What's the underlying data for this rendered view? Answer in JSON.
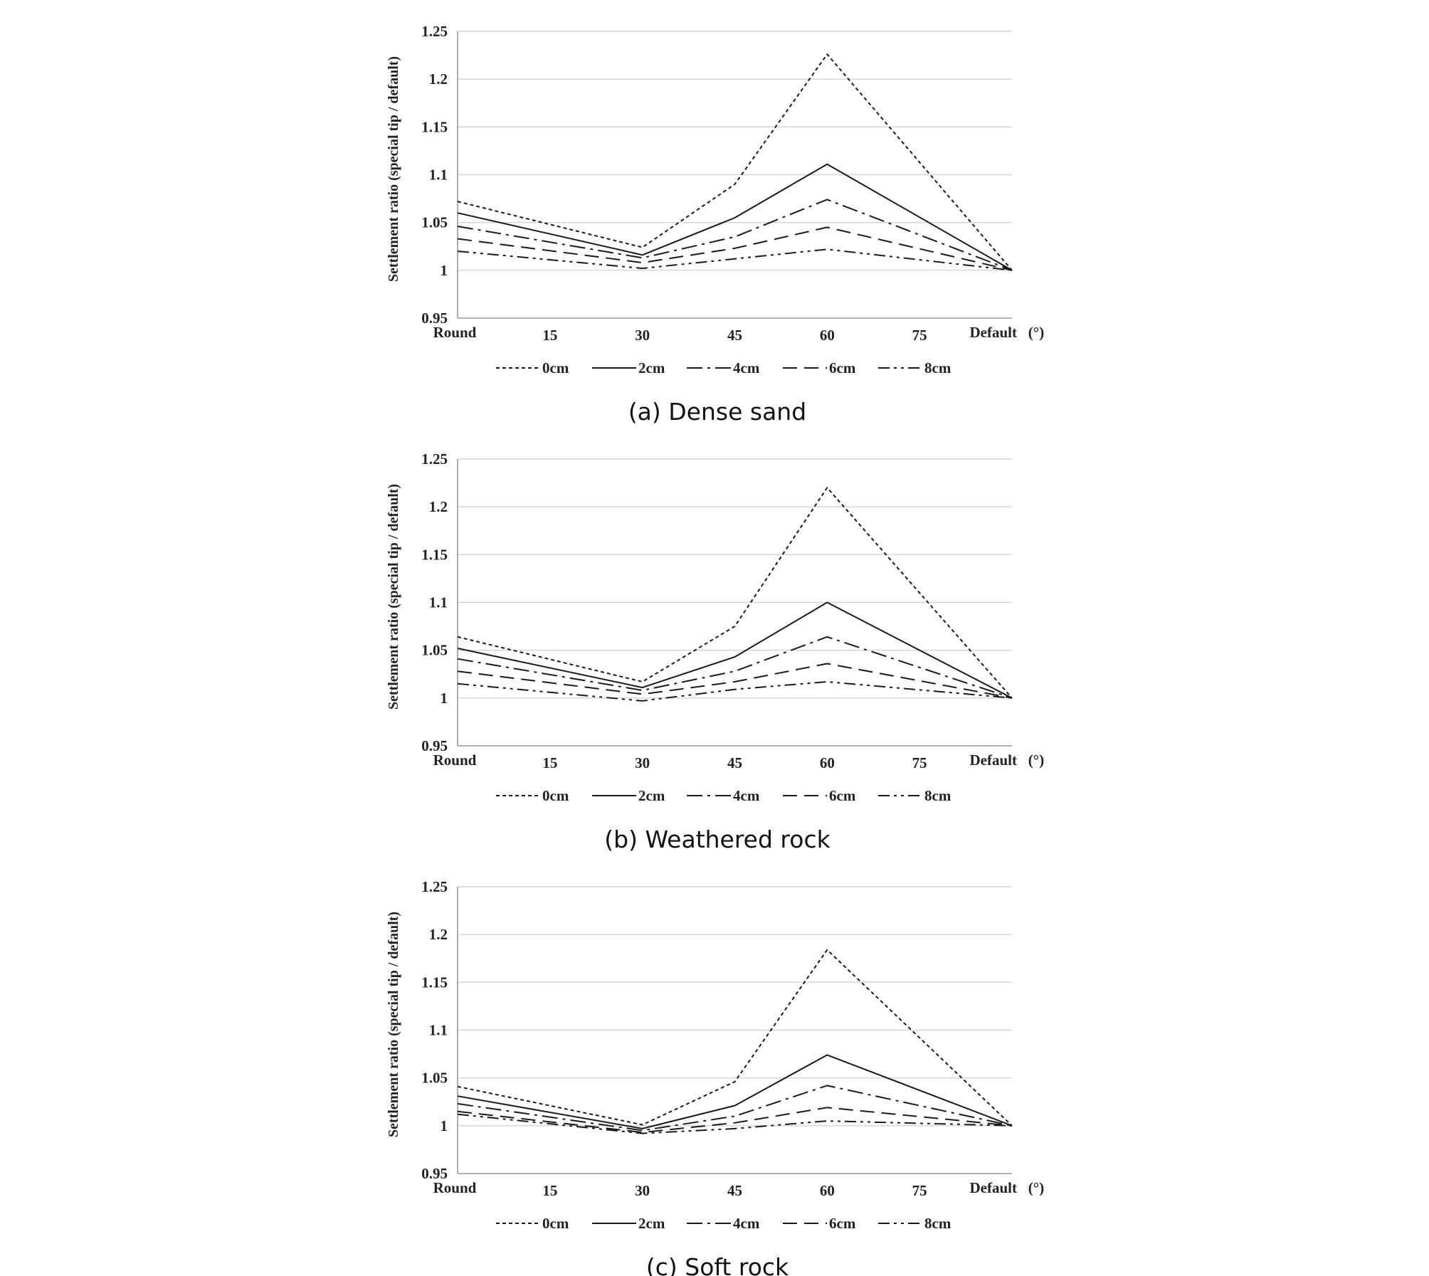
{
  "chart_data": [
    {
      "type": "line",
      "title": "(a) Dense sand",
      "xlabel": "",
      "ylabel": "Settlement ratio (special tip / default)",
      "x_unit": "(°)",
      "categories": [
        "Round",
        "15",
        "30",
        "45",
        "60",
        "75",
        "Default"
      ],
      "ylim": [
        0.95,
        1.25
      ],
      "yticks": [
        "0.95",
        "1",
        "1.05",
        "1.1",
        "1.15",
        "1.2",
        "1.25"
      ],
      "grid": true,
      "legend_position": "bottom",
      "series": [
        {
          "name": "0cm",
          "style": "dotted",
          "x": [
            "Round",
            "30",
            "45",
            "60",
            "Default"
          ],
          "values": [
            1.072,
            1.024,
            1.09,
            1.226,
            1.0
          ]
        },
        {
          "name": "2cm",
          "style": "solid",
          "x": [
            "Round",
            "30",
            "45",
            "60",
            "Default"
          ],
          "values": [
            1.06,
            1.016,
            1.055,
            1.111,
            1.0
          ]
        },
        {
          "name": "4cm",
          "style": "dash-dot",
          "x": [
            "Round",
            "30",
            "45",
            "60",
            "Default"
          ],
          "values": [
            1.046,
            1.013,
            1.035,
            1.074,
            1.0
          ]
        },
        {
          "name": "6cm",
          "style": "dashed",
          "x": [
            "Round",
            "30",
            "45",
            "60",
            "Default"
          ],
          "values": [
            1.033,
            1.008,
            1.023,
            1.045,
            1.0
          ]
        },
        {
          "name": "8cm",
          "style": "dash-dot-dot",
          "x": [
            "Round",
            "30",
            "45",
            "60",
            "Default"
          ],
          "values": [
            1.02,
            1.002,
            1.012,
            1.022,
            1.0
          ]
        }
      ]
    },
    {
      "type": "line",
      "title": "(b) Weathered rock",
      "xlabel": "",
      "ylabel": "Settlement ratio (special tip / default)",
      "x_unit": "(°)",
      "categories": [
        "Round",
        "15",
        "30",
        "45",
        "60",
        "75",
        "Default"
      ],
      "ylim": [
        0.95,
        1.25
      ],
      "yticks": [
        "0.95",
        "1",
        "1.05",
        "1.1",
        "1.15",
        "1.2",
        "1.25"
      ],
      "grid": true,
      "legend_position": "bottom",
      "series": [
        {
          "name": "0cm",
          "style": "dotted",
          "x": [
            "Round",
            "30",
            "45",
            "60",
            "Default"
          ],
          "values": [
            1.064,
            1.017,
            1.075,
            1.22,
            1.0
          ]
        },
        {
          "name": "2cm",
          "style": "solid",
          "x": [
            "Round",
            "30",
            "45",
            "60",
            "Default"
          ],
          "values": [
            1.052,
            1.011,
            1.043,
            1.1,
            1.0
          ]
        },
        {
          "name": "4cm",
          "style": "dash-dot",
          "x": [
            "Round",
            "30",
            "45",
            "60",
            "Default"
          ],
          "values": [
            1.041,
            1.008,
            1.028,
            1.064,
            1.0
          ]
        },
        {
          "name": "6cm",
          "style": "dashed",
          "x": [
            "Round",
            "30",
            "45",
            "60",
            "Default"
          ],
          "values": [
            1.028,
            1.004,
            1.017,
            1.036,
            1.0
          ]
        },
        {
          "name": "8cm",
          "style": "dash-dot-dot",
          "x": [
            "Round",
            "30",
            "45",
            "60",
            "Default"
          ],
          "values": [
            1.015,
            0.997,
            1.009,
            1.017,
            1.0
          ]
        }
      ]
    },
    {
      "type": "line",
      "title": "(c) Soft rock",
      "xlabel": "",
      "ylabel": "Settlement ratio (special tip / default)",
      "x_unit": "(°)",
      "categories": [
        "Round",
        "15",
        "30",
        "45",
        "60",
        "75",
        "Default"
      ],
      "ylim": [
        0.95,
        1.25
      ],
      "yticks": [
        "0.95",
        "1",
        "1.05",
        "1.1",
        "1.15",
        "1.2",
        "1.25"
      ],
      "grid": true,
      "legend_position": "bottom",
      "series": [
        {
          "name": "0cm",
          "style": "dotted",
          "x": [
            "Round",
            "30",
            "45",
            "60",
            "Default"
          ],
          "values": [
            1.041,
            1.001,
            1.046,
            1.184,
            1.0
          ]
        },
        {
          "name": "2cm",
          "style": "solid",
          "x": [
            "Round",
            "30",
            "45",
            "60",
            "Default"
          ],
          "values": [
            1.031,
            0.997,
            1.021,
            1.074,
            1.0
          ]
        },
        {
          "name": "4cm",
          "style": "dash-dot",
          "x": [
            "Round",
            "30",
            "45",
            "60",
            "Default"
          ],
          "values": [
            1.023,
            0.995,
            1.01,
            1.042,
            1.0
          ]
        },
        {
          "name": "6cm",
          "style": "dashed",
          "x": [
            "Round",
            "30",
            "45",
            "60",
            "Default"
          ],
          "values": [
            1.015,
            0.993,
            1.003,
            1.019,
            1.0
          ]
        },
        {
          "name": "8cm",
          "style": "dash-dot-dot",
          "x": [
            "Round",
            "30",
            "45",
            "60",
            "Default"
          ],
          "values": [
            1.012,
            0.992,
            0.997,
            1.005,
            1.0
          ]
        }
      ]
    }
  ]
}
